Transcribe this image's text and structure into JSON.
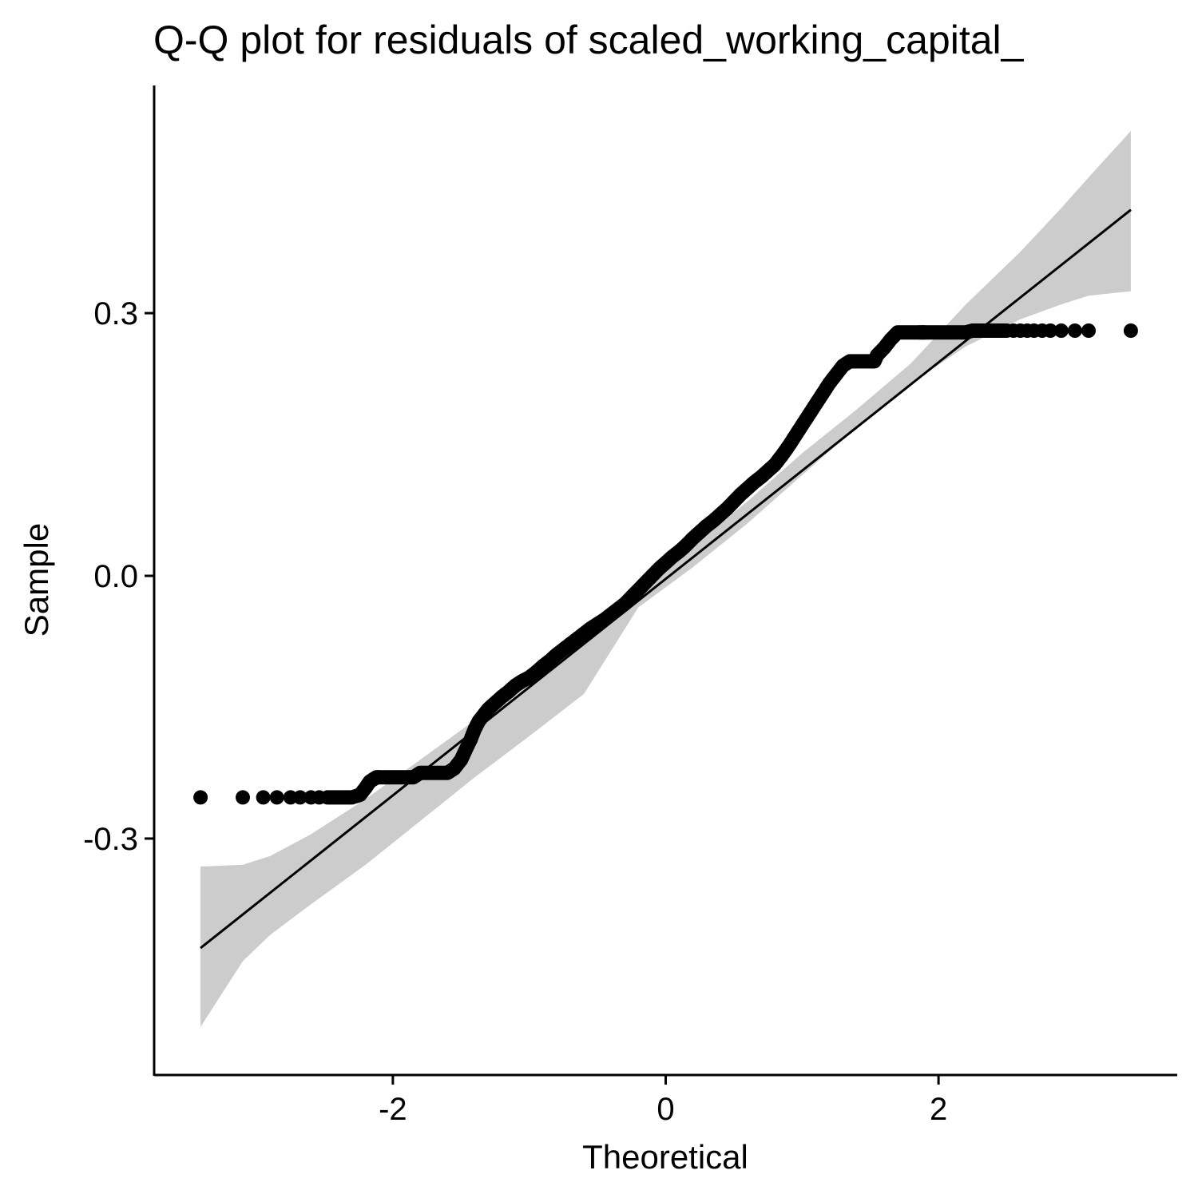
{
  "chart_data": {
    "type": "scatter",
    "title": "Q-Q plot for residuals of scaled_working_capital_",
    "xlabel": "Theoretical",
    "ylabel": "Sample",
    "xlim": [
      -3.75,
      3.75
    ],
    "ylim": [
      -0.57,
      0.56
    ],
    "x_ticks": [
      {
        "value": -2,
        "label": "-2"
      },
      {
        "value": 0,
        "label": "0"
      },
      {
        "value": 2,
        "label": "2"
      }
    ],
    "y_ticks": [
      {
        "value": 0.3,
        "label": "0.3"
      },
      {
        "value": 0.0,
        "label": "0.0"
      },
      {
        "value": -0.3,
        "label": "-0.3"
      }
    ],
    "grid": false,
    "legend": "none",
    "colors": {
      "points": "#000000",
      "reference_line": "#000000",
      "confidence_band": "#cccccc",
      "axes": "#000000"
    },
    "reference_line": {
      "x": [
        -3.41,
        3.41
      ],
      "y": [
        -0.425,
        0.418
      ]
    },
    "confidence_band": {
      "x": [
        -3.41,
        -3.1,
        -2.9,
        -2.6,
        -2.2,
        -1.8,
        -1.4,
        -1.0,
        -0.6,
        -0.2,
        0.2,
        0.6,
        1.0,
        1.4,
        1.8,
        2.2,
        2.6,
        2.9,
        3.1,
        3.41
      ],
      "lower": [
        -0.515,
        -0.44,
        -0.41,
        -0.375,
        -0.33,
        -0.28,
        -0.23,
        -0.183,
        -0.135,
        -0.036,
        0.01,
        0.06,
        0.115,
        0.17,
        0.22,
        0.262,
        0.293,
        0.31,
        0.32,
        0.325
      ],
      "upper": [
        -0.332,
        -0.33,
        -0.32,
        -0.295,
        -0.255,
        -0.21,
        -0.165,
        -0.123,
        -0.075,
        -0.01,
        0.035,
        0.085,
        0.14,
        0.19,
        0.243,
        0.31,
        0.37,
        0.42,
        0.455,
        0.508
      ]
    },
    "points": {
      "x": [
        -3.41,
        -3.1,
        -2.95,
        -2.85,
        -2.75,
        -2.68,
        -2.6,
        -2.54,
        -2.48,
        -2.42,
        -2.36,
        -2.3,
        -2.24,
        -2.2,
        -2.17,
        -2.14,
        -2.12,
        -2.1,
        -2.05,
        -2.0,
        -1.95,
        -1.9,
        -1.85,
        -1.8,
        -1.75,
        -1.7,
        -1.65,
        -1.6,
        -1.55,
        -1.5,
        -1.47,
        -1.43,
        -1.4,
        -1.37,
        -1.33,
        -1.3,
        -1.25,
        -1.2,
        -1.15,
        -1.1,
        -1.05,
        -1.0,
        -0.95,
        -0.9,
        -0.85,
        -0.8,
        -0.75,
        -0.7,
        -0.65,
        -0.6,
        -0.55,
        -0.5,
        -0.45,
        -0.4,
        -0.35,
        -0.3,
        -0.25,
        -0.2,
        -0.15,
        -0.1,
        -0.05,
        0.0,
        0.05,
        0.1,
        0.15,
        0.2,
        0.25,
        0.3,
        0.35,
        0.4,
        0.45,
        0.5,
        0.55,
        0.6,
        0.65,
        0.7,
        0.75,
        0.8,
        0.85,
        0.9,
        0.95,
        1.0,
        1.05,
        1.1,
        1.15,
        1.2,
        1.25,
        1.3,
        1.35,
        1.4,
        1.45,
        1.5,
        1.53,
        1.55,
        1.6,
        1.65,
        1.7,
        1.75,
        1.8,
        1.85,
        1.88,
        1.9,
        1.95,
        2.0,
        2.05,
        2.1,
        2.15,
        2.2,
        2.25,
        2.3,
        2.35,
        2.4,
        2.45,
        2.5,
        2.55,
        2.6,
        2.65,
        2.7,
        2.76,
        2.82,
        2.9,
        3.0,
        3.1,
        3.41
      ],
      "y": [
        -0.253,
        -0.253,
        -0.253,
        -0.253,
        -0.253,
        -0.253,
        -0.253,
        -0.253,
        -0.253,
        -0.253,
        -0.253,
        -0.253,
        -0.25,
        -0.242,
        -0.235,
        -0.232,
        -0.23,
        -0.23,
        -0.23,
        -0.23,
        -0.23,
        -0.23,
        -0.23,
        -0.225,
        -0.225,
        -0.225,
        -0.225,
        -0.225,
        -0.22,
        -0.21,
        -0.2,
        -0.187,
        -0.175,
        -0.166,
        -0.158,
        -0.152,
        -0.145,
        -0.138,
        -0.132,
        -0.125,
        -0.12,
        -0.116,
        -0.11,
        -0.103,
        -0.097,
        -0.09,
        -0.084,
        -0.078,
        -0.072,
        -0.066,
        -0.06,
        -0.055,
        -0.05,
        -0.044,
        -0.038,
        -0.032,
        -0.024,
        -0.016,
        -0.008,
        0.0,
        0.008,
        0.015,
        0.022,
        0.028,
        0.035,
        0.043,
        0.05,
        0.057,
        0.063,
        0.07,
        0.077,
        0.085,
        0.093,
        0.1,
        0.107,
        0.113,
        0.12,
        0.127,
        0.137,
        0.148,
        0.16,
        0.172,
        0.184,
        0.196,
        0.208,
        0.22,
        0.23,
        0.24,
        0.245,
        0.245,
        0.245,
        0.245,
        0.245,
        0.252,
        0.26,
        0.27,
        0.278,
        0.278,
        0.278,
        0.278,
        0.278,
        0.278,
        0.278,
        0.278,
        0.278,
        0.278,
        0.278,
        0.278,
        0.28,
        0.28,
        0.28,
        0.28,
        0.28,
        0.28,
        0.28,
        0.28,
        0.28,
        0.28,
        0.28,
        0.28,
        0.28,
        0.28,
        0.28,
        0.28
      ]
    }
  }
}
